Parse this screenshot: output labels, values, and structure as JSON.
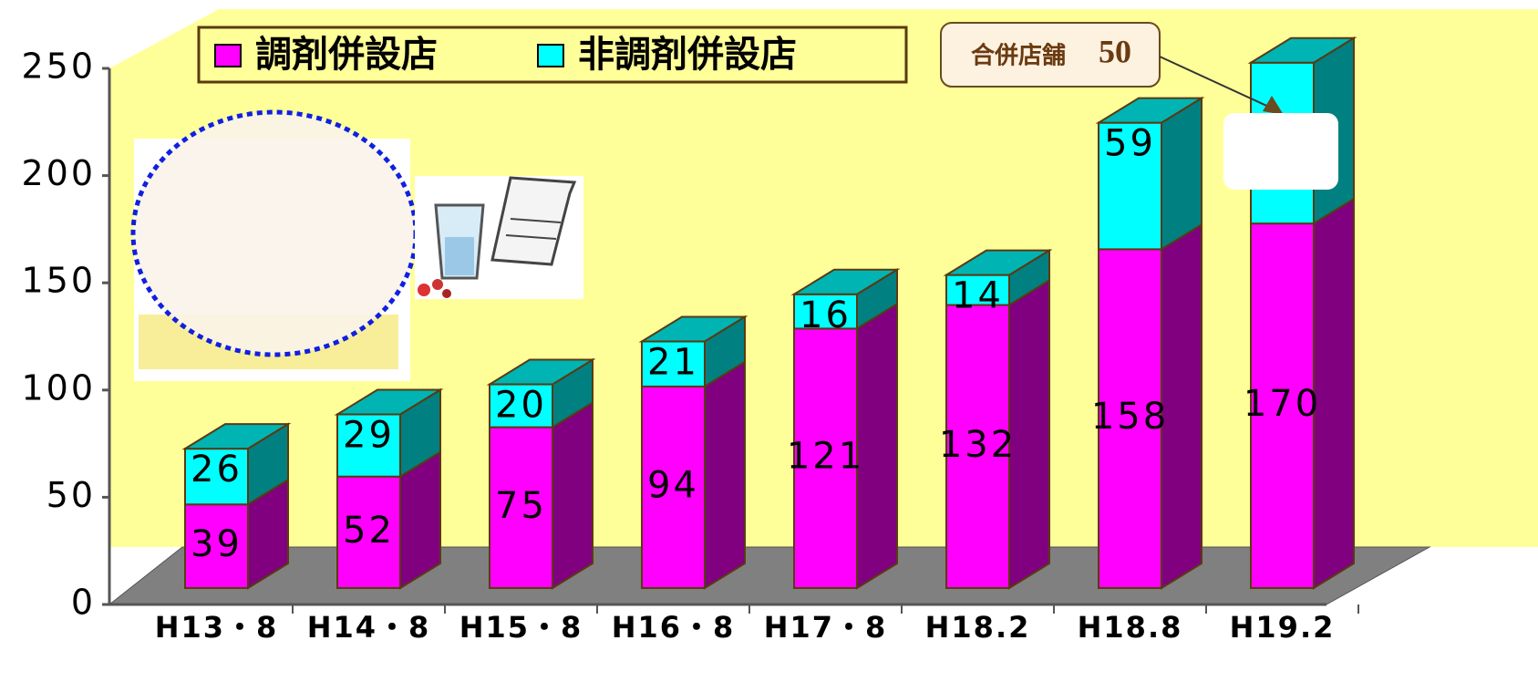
{
  "chart_data": {
    "type": "bar3d_stacked",
    "categories": [
      "H13・8",
      "H14・8",
      "H15・8",
      "H16・8",
      "H17・8",
      "H18.2",
      "H18.8",
      "H19.2"
    ],
    "series": [
      {
        "name": "調剤併設店",
        "color": "#ff00ff",
        "side_color": "#800080",
        "values": [
          39,
          52,
          75,
          94,
          121,
          132,
          158,
          170
        ]
      },
      {
        "name": "非調剤併設店",
        "color": "#00ffff",
        "side_color": "#008080",
        "values": [
          26,
          29,
          20,
          21,
          16,
          14,
          59,
          75
        ],
        "value_labels": [
          "26",
          "29",
          "20",
          "21",
          "16",
          "14",
          "59",
          null
        ]
      }
    ],
    "ylim": [
      0,
      250
    ],
    "yticks": [
      0,
      50,
      100,
      150,
      200,
      250
    ],
    "annotation": {
      "label": "合併店舗",
      "value": "50"
    }
  }
}
